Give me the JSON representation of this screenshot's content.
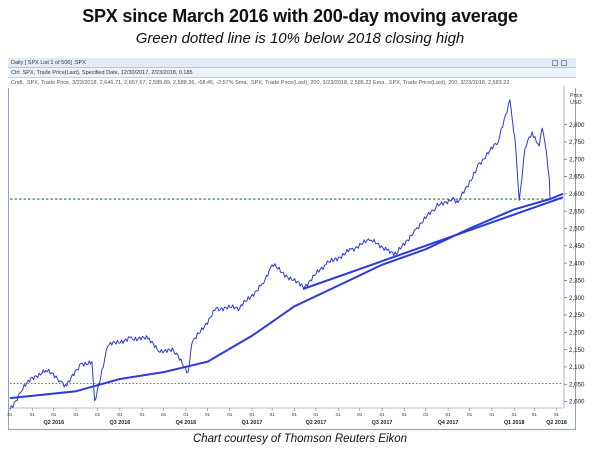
{
  "title": "SPX since March 2016 with 200-day moving average",
  "subtitle": "Green dotted line is 10% below 2018 closing high",
  "credit": "Chart courtesy of Thomson Reuters Eikon",
  "window": {
    "header_line1": "Daily [ SPX List 1 of 506] .SPX",
    "header_line2": "Ctrl .SPX, Trade Price(Last), Specified Date, 12/30/2017, 2/23/2018, 0.185",
    "header_line3": "Cndl, .SPX, Trade Price, 3/23/2018, 2,646.71, 2,657.67, 2,585.89, 2,588.26, -68.45, -2.57%  Sma, .SPX, Trade Price(Last), 200, 3/23/2018, 2,585.22  Ema, .SPX, Trade Price(Last), 200, 3/23/2018, 2,583.22"
  },
  "chart_data": {
    "type": "line",
    "ylabel": "Price\nUSD",
    "ylim": [
      1990,
      2900
    ],
    "y_ticks": [
      2000,
      2050,
      2100,
      2150,
      2200,
      2250,
      2300,
      2350,
      2400,
      2450,
      2500,
      2550,
      2600,
      2650,
      2700,
      2750,
      2800
    ],
    "y_tick_labels": [
      "2,000",
      "2,050",
      "2,100",
      "2,150",
      "2,200",
      "2,250",
      "2,300",
      "2,350",
      "2,400",
      "2,450",
      "2,500",
      "2,550",
      "2,600",
      "2,650",
      "2,700",
      "2,750",
      "2,800"
    ],
    "x_range": [
      "2016-03-01",
      "2018-04-10"
    ],
    "x_month_ticks": [
      "2016-03-01",
      "2016-04-01",
      "2016-05-01",
      "2016-06-01",
      "2016-07-01",
      "2016-08-01",
      "2016-09-01",
      "2016-10-01",
      "2016-11-01",
      "2016-12-01",
      "2017-01-01",
      "2017-02-01",
      "2017-03-01",
      "2017-04-01",
      "2017-05-01",
      "2017-06-01",
      "2017-07-01",
      "2017-08-01",
      "2017-09-01",
      "2017-10-01",
      "2017-11-01",
      "2017-12-01",
      "2018-01-01",
      "2018-02-01",
      "2018-03-01",
      "2018-04-01"
    ],
    "x_month_labels": [
      "01",
      "01",
      "01",
      "01",
      "01",
      "01",
      "01",
      "01",
      "01",
      "01",
      "01",
      "01",
      "01",
      "01",
      "01",
      "01",
      "01",
      "01",
      "01",
      "01",
      "01",
      "01",
      "01",
      "01",
      "01",
      "01"
    ],
    "x_quarter_ticks": [
      {
        "date": "2016-05-01",
        "label": "Q2 2016"
      },
      {
        "date": "2016-08-01",
        "label": "Q3 2016"
      },
      {
        "date": "2016-11-01",
        "label": "Q4 2016"
      },
      {
        "date": "2017-02-01",
        "label": "Q1 2017"
      },
      {
        "date": "2017-05-01",
        "label": "Q2 2017"
      },
      {
        "date": "2017-08-01",
        "label": "Q3 2017"
      },
      {
        "date": "2017-11-01",
        "label": "Q4 2017"
      },
      {
        "date": "2018-02-01",
        "label": "Q1 2018"
      },
      {
        "date": "2018-04-01",
        "label": "Q2 2018"
      }
    ],
    "series": [
      {
        "role": "price",
        "color": "#2b3bd6",
        "x": [
          "2016-03-01",
          "2016-03-15",
          "2016-04-01",
          "2016-04-20",
          "2016-05-10",
          "2016-05-19",
          "2016-06-08",
          "2016-06-23",
          "2016-06-27",
          "2016-07-15",
          "2016-08-15",
          "2016-09-09",
          "2016-09-22",
          "2016-10-15",
          "2016-11-04",
          "2016-11-09",
          "2016-12-13",
          "2017-01-15",
          "2017-02-15",
          "2017-03-01",
          "2017-04-13",
          "2017-05-15",
          "2017-06-19",
          "2017-07-15",
          "2017-08-10",
          "2017-08-21",
          "2017-09-15",
          "2017-10-15",
          "2017-11-08",
          "2017-11-15",
          "2017-12-15",
          "2018-01-10",
          "2018-01-26",
          "2018-02-02",
          "2018-02-08",
          "2018-02-16",
          "2018-02-26",
          "2018-03-08",
          "2018-03-12",
          "2018-03-16",
          "2018-03-22",
          "2018-03-23"
        ],
        "y": [
          1978,
          2025,
          2070,
          2090,
          2060,
          2045,
          2110,
          2115,
          2002,
          2160,
          2185,
          2180,
          2150,
          2145,
          2085,
          2165,
          2270,
          2270,
          2340,
          2395,
          2330,
          2395,
          2440,
          2465,
          2440,
          2425,
          2495,
          2560,
          2590,
          2575,
          2690,
          2750,
          2872,
          2760,
          2581,
          2730,
          2779,
          2738,
          2790,
          2747,
          2643,
          2588
        ]
      },
      {
        "role": "200-day moving average",
        "color": "#2b3bd6",
        "x": [
          "2016-03-01",
          "2016-06-01",
          "2016-08-01",
          "2016-10-01",
          "2016-12-01",
          "2017-02-01",
          "2017-04-01",
          "2017-06-01",
          "2017-08-01",
          "2017-10-01",
          "2017-12-01",
          "2018-02-01",
          "2018-03-23",
          "2018-04-10"
        ],
        "y": [
          2010,
          2030,
          2065,
          2085,
          2115,
          2190,
          2275,
          2335,
          2395,
          2440,
          2500,
          2555,
          2585,
          2600
        ]
      },
      {
        "role": "trendline",
        "color": "#2b3bd6",
        "x": [
          "2017-04-13",
          "2018-04-10"
        ],
        "y": [
          2325,
          2590
        ]
      }
    ],
    "reference_lines": [
      {
        "y": 2585,
        "style": "dotted",
        "color": "#1a8a1a",
        "note": "Green dotted line is 10% below 2018 closing high"
      },
      {
        "y": 2052,
        "style": "dotted",
        "color": "#4a5bd8"
      }
    ]
  }
}
